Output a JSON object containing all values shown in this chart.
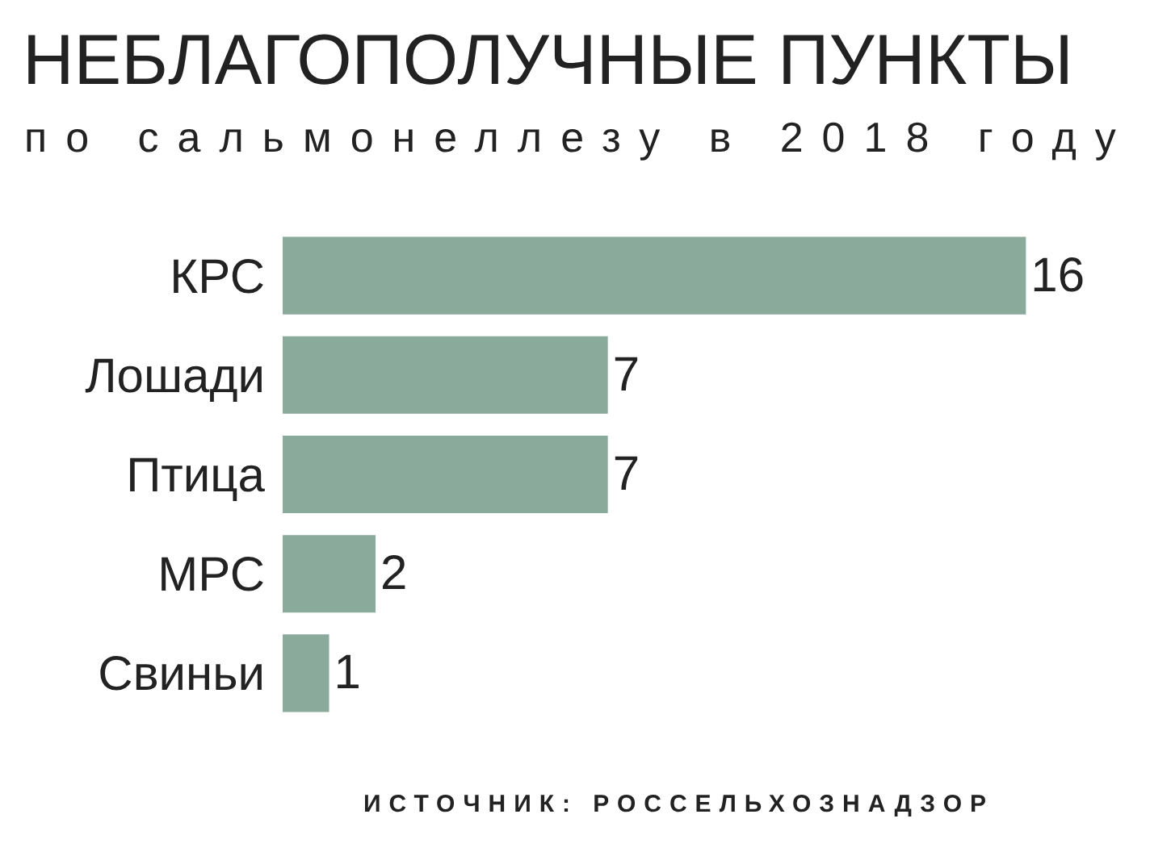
{
  "chart_data": {
    "type": "bar",
    "orientation": "horizontal",
    "title": "НЕБЛАГОПОЛУЧНЫЕ ПУНКТЫ",
    "subtitle": "по сальмонеллезу в 2018 году",
    "categories": [
      "КРС",
      "Лошади",
      "Птица",
      "МРС",
      "Свиньи"
    ],
    "values": [
      16,
      7,
      7,
      2,
      1
    ],
    "color": "#8aab9c",
    "data_labels": true,
    "annotations": [
      "ИСТОЧНИК: РОССЕЛЬХОЗНАДЗОР"
    ]
  }
}
